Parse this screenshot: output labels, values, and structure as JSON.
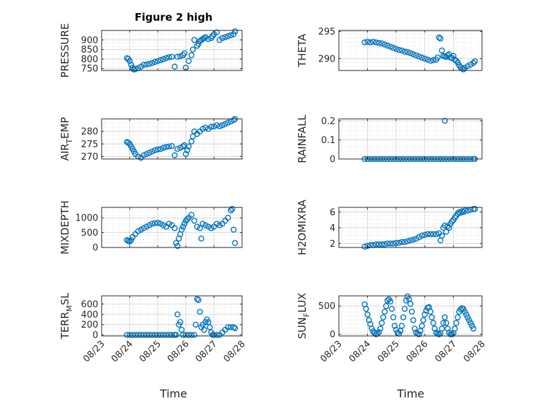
{
  "figure": {
    "title": "Figure 2 high",
    "xlabel": "Time",
    "xticks": [
      "08/23",
      "08/24",
      "08/25",
      "08/26",
      "08/27",
      "08/28"
    ],
    "marker_color": "#0072BD"
  },
  "chart_data": [
    {
      "type": "scatter",
      "title": "Figure 2 high",
      "ylabel": "PRESSURE",
      "ylabel_sub": "",
      "xlim": [
        0,
        5
      ],
      "ylim": [
        740,
        950
      ],
      "yticks": [
        750,
        800,
        850,
        900
      ],
      "grid": true,
      "x": [
        0.9,
        0.95,
        1.0,
        1.05,
        1.1,
        1.15,
        1.2,
        1.3,
        1.4,
        1.5,
        1.6,
        1.7,
        1.8,
        1.9,
        2.0,
        2.1,
        2.2,
        2.3,
        2.4,
        2.5,
        2.6,
        2.7,
        2.8,
        2.9,
        2.95,
        3.0,
        3.1,
        3.2,
        3.25,
        3.3,
        3.4,
        3.45,
        3.5,
        3.55,
        3.6,
        3.65,
        3.7,
        3.8,
        3.9,
        3.95,
        4.0,
        4.1,
        4.2,
        4.3,
        4.4,
        4.5,
        4.6,
        4.7,
        4.75
      ],
      "y": [
        805,
        800,
        790,
        770,
        755,
        745,
        748,
        752,
        760,
        770,
        772,
        775,
        780,
        785,
        790,
        795,
        800,
        805,
        810,
        812,
        760,
        812,
        815,
        820,
        830,
        755,
        790,
        820,
        850,
        900,
        870,
        880,
        895,
        900,
        905,
        910,
        915,
        905,
        910,
        920,
        930,
        940,
        900,
        910,
        915,
        920,
        925,
        930,
        945
      ]
    },
    {
      "type": "scatter",
      "title": "",
      "ylabel": "THETA",
      "ylabel_sub": "",
      "xlim": [
        0,
        5
      ],
      "ylim": [
        287.8,
        295.2
      ],
      "yticks": [
        290,
        295
      ],
      "grid": true,
      "x": [
        0.9,
        1.0,
        1.1,
        1.2,
        1.3,
        1.4,
        1.5,
        1.6,
        1.7,
        1.8,
        1.9,
        2.0,
        2.1,
        2.2,
        2.3,
        2.4,
        2.5,
        2.6,
        2.7,
        2.8,
        2.9,
        3.0,
        3.1,
        3.2,
        3.3,
        3.4,
        3.45,
        3.5,
        3.55,
        3.6,
        3.65,
        3.7,
        3.75,
        3.8,
        3.85,
        3.9,
        3.95,
        4.0,
        4.05,
        4.1,
        4.15,
        4.2,
        4.25,
        4.3,
        4.35,
        4.4,
        4.5,
        4.6,
        4.7,
        4.75
      ],
      "y": [
        293.0,
        293.1,
        293.0,
        293.1,
        293.0,
        292.9,
        292.8,
        292.6,
        292.4,
        292.2,
        292.0,
        291.8,
        291.6,
        291.5,
        291.3,
        291.2,
        291.0,
        290.8,
        290.6,
        290.4,
        290.2,
        290.0,
        289.8,
        289.6,
        289.7,
        289.8,
        290.2,
        293.9,
        293.7,
        291.5,
        290.5,
        290.4,
        290.3,
        290.6,
        290.8,
        290.2,
        290.1,
        290.5,
        289.8,
        289.6,
        289.3,
        288.8,
        288.4,
        288.2,
        288.0,
        288.3,
        288.6,
        288.9,
        289.2,
        289.5
      ]
    },
    {
      "type": "scatter",
      "title": "",
      "ylabel": "AIR",
      "ylabel_sub": "T",
      "ylabel_rest": "EMP",
      "xlim": [
        0,
        5
      ],
      "ylim": [
        269,
        285
      ],
      "yticks": [
        270,
        275,
        280
      ],
      "grid": true,
      "x": [
        0.9,
        0.95,
        1.0,
        1.05,
        1.1,
        1.15,
        1.2,
        1.3,
        1.4,
        1.5,
        1.6,
        1.7,
        1.8,
        1.9,
        2.0,
        2.1,
        2.2,
        2.3,
        2.4,
        2.5,
        2.6,
        2.7,
        2.8,
        2.9,
        2.95,
        3.0,
        3.05,
        3.1,
        3.2,
        3.25,
        3.3,
        3.4,
        3.5,
        3.6,
        3.7,
        3.8,
        3.9,
        4.0,
        4.1,
        4.2,
        4.3,
        4.4,
        4.5,
        4.6,
        4.7,
        4.75
      ],
      "y": [
        275.8,
        275.5,
        275.0,
        274.0,
        273.0,
        272.0,
        271.0,
        270.0,
        269.5,
        270.5,
        271.0,
        271.5,
        272.0,
        272.5,
        272.8,
        273.0,
        273.5,
        273.8,
        274.0,
        274.2,
        270.5,
        273.0,
        273.5,
        274.0,
        274.5,
        271.0,
        272.5,
        274.0,
        276.0,
        278.0,
        280.0,
        279.0,
        280.0,
        281.0,
        281.5,
        281.0,
        281.8,
        282.0,
        282.5,
        282.0,
        282.5,
        283.0,
        283.5,
        284.0,
        284.5,
        285.0
      ]
    },
    {
      "type": "scatter",
      "title": "",
      "ylabel": "RAINFALL",
      "ylabel_sub": "",
      "xlim": [
        0,
        5
      ],
      "ylim": [
        0,
        0.21
      ],
      "yticks": [
        0,
        0.1,
        0.2
      ],
      "grid": true,
      "x": [
        0.9,
        1.0,
        1.1,
        1.2,
        1.3,
        1.4,
        1.5,
        1.6,
        1.7,
        1.8,
        1.9,
        2.0,
        2.1,
        2.2,
        2.3,
        2.4,
        2.5,
        2.6,
        2.7,
        2.8,
        2.9,
        3.0,
        3.1,
        3.2,
        3.3,
        3.4,
        3.5,
        3.6,
        3.7,
        3.8,
        3.9,
        4.0,
        4.1,
        4.2,
        4.3,
        4.4,
        4.5,
        4.6,
        4.7,
        4.75,
        3.7
      ],
      "y": [
        0,
        0,
        0,
        0,
        0,
        0,
        0,
        0,
        0,
        0,
        0,
        0,
        0,
        0,
        0,
        0,
        0,
        0,
        0,
        0,
        0,
        0,
        0,
        0,
        0,
        0,
        0,
        0,
        0,
        0,
        0,
        0,
        0,
        0,
        0,
        0,
        0,
        0,
        0,
        0,
        0.2
      ]
    },
    {
      "type": "scatter",
      "title": "",
      "ylabel": "MIXDEPTH",
      "ylabel_sub": "",
      "xlim": [
        0,
        5
      ],
      "ylim": [
        0,
        1350
      ],
      "yticks": [
        0,
        500,
        1000
      ],
      "grid": true,
      "x": [
        0.9,
        0.95,
        1.0,
        1.05,
        1.1,
        1.2,
        1.3,
        1.4,
        1.5,
        1.6,
        1.7,
        1.8,
        1.9,
        2.0,
        2.1,
        2.2,
        2.3,
        2.4,
        2.5,
        2.6,
        2.65,
        2.7,
        2.75,
        2.8,
        2.85,
        2.9,
        2.95,
        3.0,
        3.05,
        3.1,
        3.2,
        3.3,
        3.4,
        3.5,
        3.55,
        3.6,
        3.7,
        3.8,
        3.9,
        4.0,
        4.1,
        4.2,
        4.3,
        4.4,
        4.5,
        4.6,
        4.65,
        4.7,
        4.75
      ],
      "y": [
        250,
        220,
        200,
        250,
        350,
        450,
        550,
        600,
        650,
        700,
        750,
        800,
        820,
        830,
        800,
        750,
        700,
        800,
        750,
        650,
        150,
        50,
        300,
        450,
        600,
        700,
        800,
        900,
        950,
        1000,
        1100,
        900,
        700,
        650,
        300,
        800,
        750,
        700,
        650,
        700,
        800,
        750,
        800,
        900,
        1000,
        1250,
        1300,
        600,
        150
      ]
    },
    {
      "type": "scatter",
      "title": "",
      "ylabel": "H2OMIXRA",
      "ylabel_sub": "",
      "xlim": [
        0,
        5
      ],
      "ylim": [
        1.5,
        6.6
      ],
      "yticks": [
        2,
        4,
        6
      ],
      "grid": true,
      "x": [
        0.9,
        1.0,
        1.1,
        1.2,
        1.3,
        1.4,
        1.5,
        1.6,
        1.7,
        1.8,
        1.9,
        2.0,
        2.1,
        2.2,
        2.3,
        2.4,
        2.5,
        2.6,
        2.7,
        2.8,
        2.9,
        3.0,
        3.1,
        3.2,
        3.3,
        3.4,
        3.5,
        3.55,
        3.6,
        3.65,
        3.7,
        3.75,
        3.8,
        3.85,
        3.9,
        3.95,
        4.0,
        4.05,
        4.1,
        4.15,
        4.2,
        4.25,
        4.3,
        4.35,
        4.4,
        4.5,
        4.6,
        4.7,
        4.75
      ],
      "y": [
        1.6,
        1.7,
        1.8,
        1.8,
        1.9,
        1.9,
        1.9,
        1.9,
        2.0,
        2.0,
        2.0,
        2.1,
        2.1,
        2.2,
        2.2,
        2.3,
        2.4,
        2.5,
        2.6,
        2.8,
        3.0,
        3.1,
        3.2,
        3.2,
        3.2,
        3.2,
        3.3,
        2.4,
        3.0,
        4.0,
        4.3,
        3.5,
        4.2,
        4.0,
        4.5,
        4.8,
        5.0,
        5.3,
        5.5,
        5.8,
        6.0,
        5.9,
        6.1,
        6.0,
        6.2,
        6.2,
        6.3,
        6.4,
        6.4
      ]
    },
    {
      "type": "scatter",
      "title": "",
      "ylabel": "TERR",
      "ylabel_sub": "M",
      "ylabel_rest": "SL",
      "xlim": [
        0,
        5
      ],
      "ylim": [
        -20,
        760
      ],
      "yticks": [
        0,
        200,
        400,
        600
      ],
      "grid": true,
      "x": [
        0.9,
        1.0,
        1.1,
        1.2,
        1.3,
        1.4,
        1.5,
        1.6,
        1.7,
        1.8,
        1.9,
        2.0,
        2.1,
        2.2,
        2.3,
        2.4,
        2.5,
        2.6,
        2.65,
        2.7,
        2.75,
        2.8,
        2.85,
        2.9,
        3.0,
        3.1,
        3.2,
        3.3,
        3.35,
        3.4,
        3.45,
        3.5,
        3.55,
        3.6,
        3.65,
        3.7,
        3.75,
        3.8,
        3.85,
        3.9,
        3.95,
        4.0,
        4.1,
        4.2,
        4.3,
        4.4,
        4.5,
        4.6,
        4.7,
        4.75
      ],
      "y": [
        0,
        0,
        0,
        0,
        0,
        0,
        0,
        0,
        0,
        0,
        0,
        0,
        0,
        0,
        0,
        0,
        0,
        0,
        0,
        400,
        200,
        250,
        100,
        0,
        0,
        0,
        0,
        0,
        200,
        700,
        680,
        450,
        150,
        200,
        100,
        250,
        300,
        250,
        150,
        50,
        0,
        0,
        0,
        0,
        50,
        100,
        150,
        150,
        150,
        130
      ]
    },
    {
      "type": "scatter",
      "title": "",
      "ylabel": "SUN",
      "ylabel_sub": "F",
      "ylabel_rest": "LUX",
      "xlim": [
        0,
        5
      ],
      "ylim": [
        -30,
        680
      ],
      "yticks": [
        0,
        500
      ],
      "grid": true,
      "x": [
        0.9,
        0.95,
        1.0,
        1.05,
        1.1,
        1.15,
        1.2,
        1.25,
        1.3,
        1.35,
        1.4,
        1.45,
        1.5,
        1.55,
        1.6,
        1.65,
        1.7,
        1.75,
        1.8,
        1.85,
        1.9,
        1.95,
        2.0,
        2.05,
        2.1,
        2.15,
        2.2,
        2.25,
        2.3,
        2.35,
        2.4,
        2.45,
        2.5,
        2.55,
        2.6,
        2.65,
        2.7,
        2.75,
        2.8,
        2.85,
        2.9,
        2.95,
        3.0,
        3.05,
        3.1,
        3.15,
        3.2,
        3.25,
        3.3,
        3.35,
        3.4,
        3.45,
        3.5,
        3.55,
        3.6,
        3.65,
        3.7,
        3.75,
        3.8,
        3.85,
        3.9,
        3.95,
        4.0,
        4.05,
        4.1,
        4.15,
        4.2,
        4.25,
        4.3,
        4.35,
        4.4,
        4.45,
        4.5,
        4.55,
        4.6,
        4.65,
        4.7
      ],
      "y": [
        530,
        450,
        350,
        250,
        180,
        100,
        50,
        20,
        0,
        10,
        40,
        100,
        200,
        300,
        400,
        500,
        600,
        620,
        580,
        450,
        300,
        150,
        80,
        30,
        10,
        60,
        150,
        300,
        450,
        600,
        670,
        620,
        540,
        400,
        250,
        100,
        30,
        10,
        0,
        60,
        150,
        250,
        350,
        420,
        470,
        480,
        400,
        300,
        200,
        100,
        30,
        10,
        0,
        20,
        100,
        200,
        300,
        200,
        100,
        30,
        0,
        0,
        20,
        100,
        200,
        300,
        400,
        440,
        460,
        450,
        400,
        350,
        300,
        250,
        200,
        150,
        100
      ]
    }
  ]
}
